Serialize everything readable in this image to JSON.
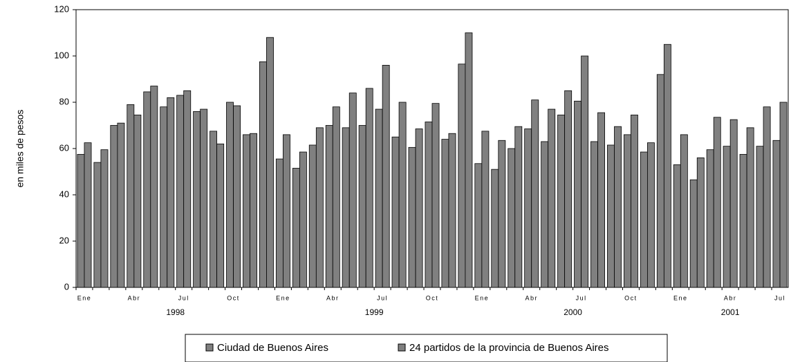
{
  "chart_data": {
    "type": "bar",
    "y_label": "en miles de pesos",
    "categories": [
      "Ene",
      null,
      null,
      "Abr",
      null,
      null,
      "Jul",
      null,
      null,
      "Oct",
      null,
      null,
      "Ene",
      null,
      null,
      "Abr",
      null,
      null,
      "Jul",
      null,
      null,
      "Oct",
      null,
      null,
      "Ene",
      null,
      null,
      "Abr",
      null,
      null,
      "Jul",
      null,
      null,
      "Oct",
      null,
      null,
      "Ene",
      null,
      null,
      "Abr",
      null,
      null,
      "Jul"
    ],
    "years": [
      "1998",
      "1999",
      "2000",
      "2001"
    ],
    "series": [
      {
        "name": "Ciudad de Buenos Aires",
        "color": "#808080",
        "values": [
          57.5,
          54,
          70,
          79,
          84.5,
          78,
          83,
          76,
          67.5,
          80,
          66,
          97.5,
          55.5,
          51.5,
          61.5,
          70,
          69,
          70,
          77,
          65,
          60.5,
          71.5,
          64,
          96.5,
          53.5,
          51,
          60,
          68.5,
          63,
          74.5,
          80.5,
          63,
          61.5,
          66,
          58.5,
          92,
          53,
          46.5,
          59.5,
          61,
          57.5,
          61,
          63.5
        ]
      },
      {
        "name": "24 partidos de la provincia de Buenos Aires",
        "color": "#808080",
        "values": [
          62.5,
          59.5,
          71,
          74.5,
          87,
          82,
          85,
          77,
          62,
          78.5,
          66.5,
          108,
          66,
          58.5,
          69,
          78,
          84,
          86,
          96,
          80,
          68.5,
          79.5,
          66.5,
          110,
          67.5,
          63.5,
          69.5,
          81,
          77,
          85,
          100,
          75.5,
          69.5,
          74.5,
          62.5,
          105,
          66,
          56,
          73.5,
          72.5,
          69,
          78,
          80
        ]
      }
    ],
    "ylim": [
      0,
      120
    ],
    "yticks": [
      0,
      20,
      40,
      60,
      80,
      100,
      120
    ],
    "grid": false
  }
}
